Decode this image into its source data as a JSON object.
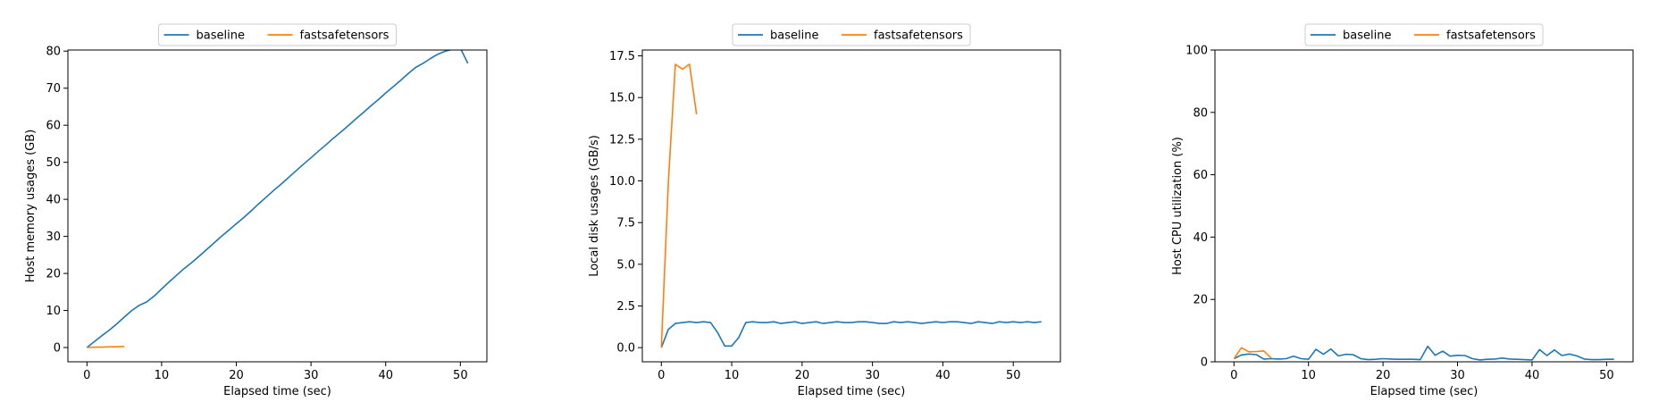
{
  "colors": {
    "baseline": "#1f77b4",
    "fastsafetensors": "#ff7f0e"
  },
  "chart_data": [
    {
      "type": "line",
      "xlabel": "Elapsed time (sec)",
      "ylabel": "Host memory usages (GB)",
      "xlim": [
        -2.55,
        53.55
      ],
      "ylim": [
        -3.85,
        80.3
      ],
      "xticks": [
        0,
        10,
        20,
        30,
        40,
        50
      ],
      "yticks": [
        0,
        10,
        20,
        30,
        40,
        50,
        60,
        70,
        80
      ],
      "ytick_labels": [
        "0",
        "10",
        "20",
        "30",
        "40",
        "50",
        "60",
        "70",
        "80"
      ],
      "legend": {
        "position": "top-center",
        "entries": [
          "baseline",
          "fastsafetensors"
        ]
      },
      "series": [
        {
          "name": "baseline",
          "x": [
            0,
            1,
            2,
            3,
            4,
            5,
            6,
            7,
            8,
            9,
            10,
            11,
            12,
            13,
            14,
            15,
            16,
            17,
            18,
            19,
            20,
            21,
            22,
            23,
            24,
            25,
            26,
            27,
            28,
            29,
            30,
            31,
            32,
            33,
            34,
            35,
            36,
            37,
            38,
            39,
            40,
            41,
            42,
            43,
            44,
            45,
            46,
            47,
            48,
            49,
            50,
            51
          ],
          "y": [
            0,
            1.6,
            3.2,
            4.7,
            6.4,
            8.2,
            10.0,
            11.4,
            12.3,
            13.9,
            15.8,
            17.7,
            19.5,
            21.3,
            22.9,
            24.6,
            26.4,
            28.2,
            30.0,
            31.7,
            33.4,
            35.1,
            36.9,
            38.8,
            40.6,
            42.4,
            44.1,
            45.9,
            47.7,
            49.5,
            51.2,
            53.0,
            54.7,
            56.5,
            58.2,
            59.9,
            61.7,
            63.4,
            65.2,
            66.9,
            68.7,
            70.4,
            72.1,
            73.9,
            75.6,
            76.7,
            78.0,
            79.2,
            80.0,
            80.5,
            80.8,
            76.7
          ],
          "note_hidden": ""
        },
        {
          "name": "fastsafetensors",
          "x": [
            0,
            1,
            2,
            3,
            4,
            5
          ],
          "y": [
            0,
            0.1,
            0.1,
            0.2,
            0.2,
            0.3
          ]
        }
      ]
    },
    {
      "type": "line",
      "xlabel": "Elapsed time (sec)",
      "ylabel": "Local disk usages (GB/s)",
      "xlim": [
        -2.7,
        56.7
      ],
      "ylim": [
        -0.85,
        17.85
      ],
      "xticks": [
        0,
        10,
        20,
        30,
        40,
        50
      ],
      "yticks": [
        0,
        2.5,
        5,
        7.5,
        10,
        12.5,
        15,
        17.5
      ],
      "ytick_labels": [
        "0.0",
        "2.5",
        "5.0",
        "7.5",
        "10.0",
        "12.5",
        "15.0",
        "17.5"
      ],
      "legend": {
        "position": "top-center",
        "entries": [
          "baseline",
          "fastsafetensors"
        ]
      },
      "series": [
        {
          "name": "baseline",
          "x": [
            0,
            1,
            2,
            3,
            4,
            5,
            6,
            7,
            8,
            9,
            10,
            11,
            12,
            13,
            14,
            15,
            16,
            17,
            18,
            19,
            20,
            21,
            22,
            23,
            24,
            25,
            26,
            27,
            28,
            29,
            30,
            31,
            32,
            33,
            34,
            35,
            36,
            37,
            38,
            39,
            40,
            41,
            42,
            43,
            44,
            45,
            46,
            47,
            48,
            49,
            50,
            51,
            52,
            53,
            54
          ],
          "y": [
            0.0,
            1.1,
            1.45,
            1.5,
            1.55,
            1.5,
            1.55,
            1.5,
            0.9,
            0.1,
            0.1,
            0.6,
            1.5,
            1.55,
            1.5,
            1.5,
            1.55,
            1.45,
            1.5,
            1.55,
            1.45,
            1.5,
            1.55,
            1.45,
            1.5,
            1.55,
            1.5,
            1.5,
            1.55,
            1.55,
            1.5,
            1.45,
            1.45,
            1.55,
            1.5,
            1.55,
            1.5,
            1.45,
            1.5,
            1.55,
            1.5,
            1.55,
            1.55,
            1.5,
            1.45,
            1.55,
            1.5,
            1.45,
            1.55,
            1.5,
            1.55,
            1.5,
            1.55,
            1.5,
            1.55
          ]
        },
        {
          "name": "fastsafetensors",
          "x": [
            0,
            1,
            2,
            3,
            4,
            5
          ],
          "y": [
            0,
            10,
            17,
            16.7,
            17,
            14
          ]
        }
      ]
    },
    {
      "type": "line",
      "xlabel": "Elapsed time (sec)",
      "ylabel": "Host CPU utilization (%)",
      "xlim": [
        -2.55,
        53.55
      ],
      "ylim": [
        0,
        100
      ],
      "xticks": [
        0,
        10,
        20,
        30,
        40,
        50
      ],
      "yticks": [
        0,
        20,
        40,
        60,
        80,
        100
      ],
      "ytick_labels": [
        "0",
        "20",
        "40",
        "60",
        "80",
        "100"
      ],
      "legend": {
        "position": "top-center",
        "entries": [
          "baseline",
          "fastsafetensors"
        ]
      },
      "series": [
        {
          "name": "baseline",
          "x": [
            0,
            1,
            2,
            3,
            4,
            5,
            6,
            7,
            8,
            9,
            10,
            11,
            12,
            13,
            14,
            15,
            16,
            17,
            18,
            19,
            20,
            21,
            22,
            23,
            24,
            25,
            26,
            27,
            28,
            29,
            30,
            31,
            32,
            33,
            34,
            35,
            36,
            37,
            38,
            39,
            40,
            41,
            42,
            43,
            44,
            45,
            46,
            47,
            48,
            49,
            50,
            51
          ],
          "y": [
            1.0,
            2.2,
            2.5,
            2.3,
            0.9,
            1.0,
            0.9,
            1.0,
            1.8,
            1.0,
            0.8,
            4.0,
            2.4,
            4.1,
            1.9,
            2.4,
            2.3,
            1.0,
            0.7,
            0.8,
            1.0,
            0.9,
            0.8,
            0.8,
            0.8,
            0.7,
            5.0,
            2.1,
            3.4,
            1.8,
            2.1,
            2.0,
            1.0,
            0.6,
            0.8,
            0.9,
            1.2,
            0.9,
            0.8,
            0.7,
            0.6,
            3.9,
            2.0,
            3.8,
            2.0,
            2.5,
            1.9,
            0.9,
            0.7,
            0.7,
            0.8,
            0.8
          ]
        },
        {
          "name": "fastsafetensors",
          "x": [
            0,
            1,
            2,
            3,
            4,
            5
          ],
          "y": [
            1.0,
            4.5,
            3.2,
            3.3,
            3.5,
            1.2
          ]
        }
      ]
    }
  ]
}
